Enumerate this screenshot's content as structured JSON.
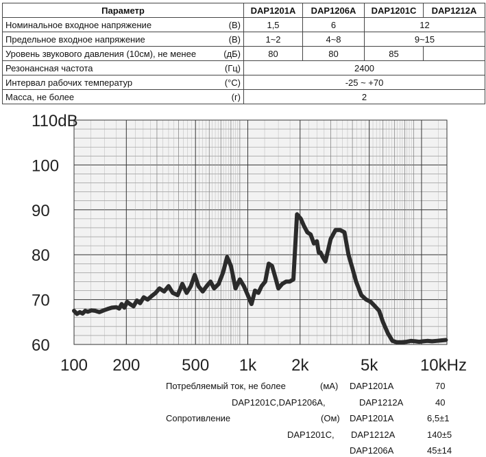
{
  "spec_table": {
    "headers": [
      "Параметр",
      "DAP1201A",
      "DAP1206A",
      "DAP1201C",
      "DAP1212A"
    ],
    "rows": [
      {
        "name": "Номинальное входное напряжение",
        "unit": "(В)",
        "values": [
          "1,5",
          "6",
          "12"
        ]
      },
      {
        "name": "Предельное входное напряжение",
        "unit": "(В)",
        "values": [
          "1~2",
          "4~8",
          "9~15"
        ]
      },
      {
        "name": "Уровень звукового давления (10см), не менее",
        "unit": "(дБ)",
        "values": [
          "80",
          "80",
          "85"
        ]
      },
      {
        "name": "Резонансная частота",
        "unit": "(Гц)",
        "values": [
          "2400"
        ]
      },
      {
        "name": "Интервал рабочих температур",
        "unit": "(°C)",
        "values": [
          "-25 ~ +70"
        ]
      },
      {
        "name": "Масса, не более",
        "unit": "(г)",
        "values": [
          "2"
        ]
      }
    ]
  },
  "chart_data": {
    "type": "line",
    "title": "",
    "xlabel": "",
    "ylabel": "",
    "x_scale": "log",
    "xlim": [
      100,
      14000
    ],
    "ylim": [
      60,
      110
    ],
    "grid": true,
    "x_tick_labels": [
      "100",
      "200",
      "500",
      "1k",
      "2k",
      "5k",
      "10kHz"
    ],
    "x_tick_values": [
      100,
      200,
      500,
      1000,
      2000,
      5000,
      10000
    ],
    "y_tick_labels": [
      "60",
      "70",
      "80",
      "90",
      "100",
      "110dB"
    ],
    "y_tick_values": [
      60,
      70,
      80,
      90,
      100,
      110
    ],
    "series": [
      {
        "x": [
          100,
          104,
          108,
          112,
          116,
          120,
          126,
          132,
          140,
          148,
          156,
          165,
          175,
          182,
          188,
          195,
          202,
          210,
          220,
          230,
          240,
          252,
          265,
          280,
          295,
          310,
          330,
          350,
          370,
          395,
          420,
          445,
          470,
          495,
          520,
          550,
          580,
          610,
          640,
          680,
          720,
          760,
          800,
          850,
          900,
          950,
          1000,
          1050,
          1100,
          1150,
          1200,
          1260,
          1320,
          1380,
          1440,
          1500,
          1580,
          1660,
          1740,
          1830,
          1920,
          2020,
          2100,
          2200,
          2300,
          2400,
          2500,
          2560,
          2620,
          2700,
          2800,
          3000,
          3200,
          3400,
          3600,
          3800,
          4000,
          4200,
          4500,
          4800,
          5100,
          5400,
          5700,
          6000,
          6400,
          6800,
          7200,
          7700,
          8200,
          8700,
          9200,
          9700,
          10200,
          10800,
          11500,
          12200,
          13000,
          13800
        ],
        "values": [
          67.5,
          66.8,
          67.2,
          66.9,
          67.5,
          67.3,
          67.6,
          67.5,
          67.2,
          67.6,
          67.9,
          68.2,
          68.3,
          68.0,
          69.0,
          68.2,
          69.5,
          69.0,
          68.5,
          69.8,
          69.2,
          70.5,
          70.0,
          70.8,
          71.5,
          72.5,
          71.8,
          73.0,
          71.5,
          71.0,
          73.5,
          71.5,
          73.0,
          75.5,
          73.0,
          71.8,
          73.0,
          74.0,
          72.5,
          73.5,
          76.0,
          79.5,
          77.5,
          72.5,
          74.5,
          73.0,
          71.0,
          69.0,
          72.0,
          71.5,
          73.0,
          74.0,
          78.0,
          77.5,
          75.0,
          72.5,
          73.5,
          74.0,
          74.0,
          74.5,
          89.0,
          88.0,
          86.5,
          85.0,
          84.5,
          82.5,
          83.0,
          80.5,
          80.5,
          79.5,
          78.5,
          83.5,
          85.5,
          85.5,
          85.0,
          80.0,
          77.0,
          74.0,
          71.0,
          70.0,
          69.5,
          68.5,
          67.5,
          65.0,
          62.5,
          60.8,
          60.5,
          60.5,
          60.6,
          60.8,
          60.7,
          60.6,
          60.7,
          60.8,
          60.7,
          60.8,
          60.9,
          61.0
        ]
      }
    ]
  },
  "footnotes": {
    "current_label": "Потребляемый ток, не более",
    "current_unit": "(мА)",
    "current_model_1": "DAP1201A",
    "current_value_1": "70",
    "current_models_2a": "DAP1201C,DAP1206A,",
    "current_models_2b": "DAP1212A",
    "current_value_2": "40",
    "resistance_label": "Сопротивление",
    "resistance_unit": "(Ом)",
    "resistance_model_1": "DAP1201A",
    "resistance_value_1": "6,5±1",
    "resistance_models_2a": "DAP1201C,",
    "resistance_models_2b": "DAP1212A",
    "resistance_value_2": "140±5",
    "resistance_model_3": "DAP1206A",
    "resistance_value_3": "45±14"
  }
}
